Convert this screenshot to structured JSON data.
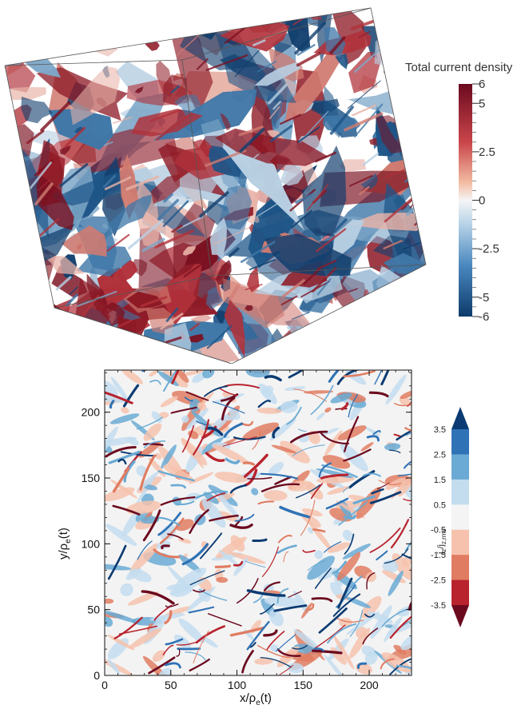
{
  "top": {
    "colorbar": {
      "title": "Total current density",
      "ticks": [
        "6",
        "5",
        "2.5",
        "0",
        "-2.5",
        "-5",
        "-6"
      ],
      "tick_values": [
        6,
        5,
        2.5,
        0,
        -2.5,
        -5,
        -6
      ],
      "range": [
        -6,
        6
      ],
      "colors": {
        "high": "#6b0a1f",
        "mid": "#f2f2f2",
        "low": "#0d3a6b"
      }
    }
  },
  "bottom": {
    "x_ticks": [
      "0",
      "50",
      "100",
      "150",
      "200"
    ],
    "y_ticks": [
      "0",
      "50",
      "100",
      "150",
      "200"
    ],
    "xlabel_main": "x/ρ",
    "xlabel_sub": "e",
    "xlabel_tail": "(t)",
    "ylabel_main": "y/ρ",
    "ylabel_sub": "e",
    "ylabel_tail": "(t)",
    "colorbar": {
      "label_main": "j",
      "label_sub": "z",
      "label_mid": "/j",
      "label_sub2": "z,rms",
      "ticks": [
        "3.5",
        "2.5",
        "1.5",
        "0.5",
        "-0.5",
        "-1.5",
        "-2.5",
        "-3.5"
      ],
      "colors": [
        "#0b3b72",
        "#2f72b5",
        "#6aaad4",
        "#c3dcee",
        "#f4f4f4",
        "#f6c2ad",
        "#e07c62",
        "#b8232e",
        "#6b0a1f"
      ]
    }
  },
  "chart_data": [
    {
      "type": "heatmap",
      "title": "",
      "description_type": "3d isosurface volume rendering",
      "colorbar_label": "Total current density",
      "color_range": [
        -6,
        6
      ],
      "colorbar_ticks": [
        6,
        5,
        2.5,
        0,
        -2.5,
        -5,
        -6
      ]
    },
    {
      "type": "heatmap",
      "xlabel": "x/ρe(t)",
      "ylabel": "y/ρe(t)",
      "xlim": [
        0,
        232
      ],
      "ylim": [
        0,
        232
      ],
      "x_ticks": [
        0,
        50,
        100,
        150,
        200
      ],
      "y_ticks": [
        0,
        50,
        100,
        150,
        200
      ],
      "colorbar_label": "jz/jz,rms",
      "levels": [
        -3.5,
        -2.5,
        -1.5,
        -0.5,
        0.5,
        1.5,
        2.5,
        3.5
      ],
      "extend": "both"
    }
  ]
}
